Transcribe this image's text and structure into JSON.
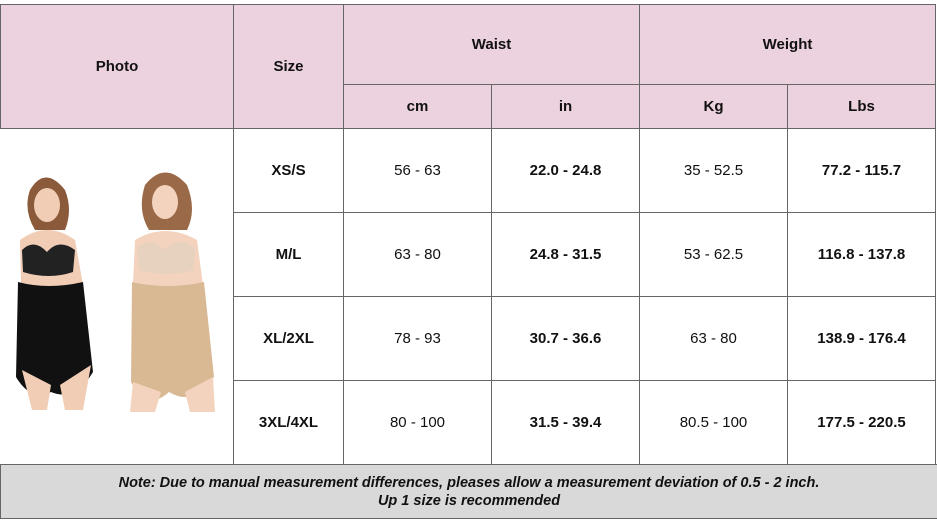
{
  "header": {
    "photo": "Photo",
    "size": "Size",
    "waist": "Waist",
    "weight": "Weight",
    "units": [
      "cm",
      "in",
      "Kg",
      "Lbs"
    ]
  },
  "table": {
    "rows": [
      [
        "XS/S",
        "56 - 63",
        "22.0 - 24.8",
        "35 - 52.5",
        "77.2 - 115.7"
      ],
      [
        "M/L",
        "63 - 80",
        "24.8 - 31.5",
        "53 - 62.5",
        "116.8 - 137.8"
      ],
      [
        "XL/2XL",
        "78 - 93",
        "30.7 - 36.6",
        "63 - 80",
        "138.9 - 176.4"
      ],
      [
        "3XL/4XL",
        "80 - 100",
        "31.5 - 39.4",
        "80.5 - 100",
        "177.5 - 220.5"
      ]
    ]
  },
  "note": [
    "Note: Due to manual measurement differences, pleases allow a measurement deviation of 0.5 - 2 inch.",
    "Up 1 size is recommended"
  ]
}
